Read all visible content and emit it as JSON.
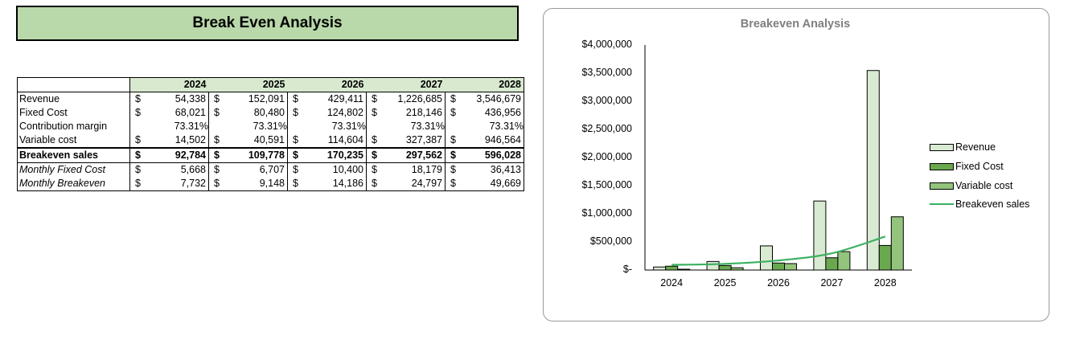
{
  "banner": {
    "title": "Break Even Analysis"
  },
  "table": {
    "currency_symbol": "$",
    "years": [
      "2024",
      "2025",
      "2026",
      "2027",
      "2028"
    ],
    "rows": [
      {
        "label": "Revenue",
        "style": "normal",
        "currency": true,
        "values": [
          "54,338",
          "152,091",
          "429,411",
          "1,226,685",
          "3,546,679"
        ]
      },
      {
        "label": "Fixed Cost",
        "style": "normal",
        "currency": true,
        "values": [
          "68,021",
          "80,480",
          "124,802",
          "218,146",
          "436,956"
        ]
      },
      {
        "label": "Contribution margin",
        "style": "normal",
        "currency": false,
        "values": [
          "73.31%",
          "73.31%",
          "73.31%",
          "73.31%",
          "73.31%"
        ]
      },
      {
        "label": "Variable cost",
        "style": "normal",
        "currency": true,
        "values": [
          "14,502",
          "40,591",
          "114,604",
          "327,387",
          "946,564"
        ]
      },
      {
        "label": "Breakeven sales",
        "style": "bold",
        "currency": true,
        "values": [
          "92,784",
          "109,778",
          "170,235",
          "297,562",
          "596,028"
        ]
      },
      {
        "label": "Monthly Fixed Cost",
        "style": "italic",
        "currency": true,
        "values": [
          "5,668",
          "6,707",
          "10,400",
          "18,179",
          "36,413"
        ]
      },
      {
        "label": "Monthly Breakeven",
        "style": "italic",
        "currency": true,
        "values": [
          "7,732",
          "9,148",
          "14,186",
          "24,797",
          "49,669"
        ]
      }
    ]
  },
  "colors": {
    "banner_fill": "#b9d9aa",
    "header_fill": "#d8e9cf",
    "revenue": "#d9ead3",
    "fixed_cost": "#6aa84f",
    "variable_cost": "#93c47d",
    "breakeven_line": "#3cb060",
    "chart_title": "#7f7f7f"
  },
  "chart_data": {
    "type": "bar",
    "title": "Breakeven Analysis",
    "xlabel": "",
    "ylabel": "",
    "categories": [
      "2024",
      "2025",
      "2026",
      "2027",
      "2028"
    ],
    "series": [
      {
        "name": "Revenue",
        "type": "bar",
        "values": [
          54338,
          152091,
          429411,
          1226685,
          3546679
        ]
      },
      {
        "name": "Fixed Cost",
        "type": "bar",
        "values": [
          68021,
          80480,
          124802,
          218146,
          436956
        ]
      },
      {
        "name": "Variable cost",
        "type": "bar",
        "values": [
          14502,
          40591,
          114604,
          327387,
          946564
        ]
      },
      {
        "name": "Breakeven sales",
        "type": "line",
        "values": [
          92784,
          109778,
          170235,
          297562,
          596028
        ]
      }
    ],
    "ylim": [
      0,
      4000000
    ],
    "yticks": [
      "$-",
      "$500,000",
      "$1,000,000",
      "$1,500,000",
      "$2,000,000",
      "$2,500,000",
      "$3,000,000",
      "$3,500,000",
      "$4,000,000"
    ],
    "grid": false,
    "legend_position": "right"
  }
}
